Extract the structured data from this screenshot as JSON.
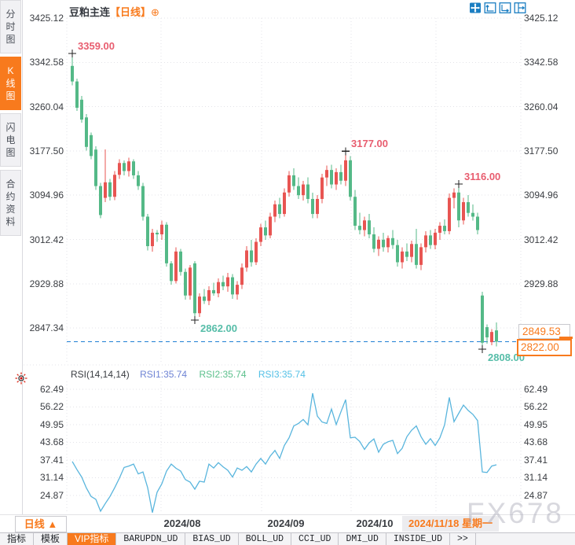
{
  "header": {
    "title": "豆粕主连",
    "period": "【日线】",
    "add_icon": "⊕"
  },
  "sidebar": {
    "tabs": [
      {
        "label": "分时图",
        "active": false
      },
      {
        "label": "K线图",
        "active": true
      },
      {
        "label": "闪电图",
        "active": false
      },
      {
        "label": "合约资料",
        "active": false
      }
    ]
  },
  "toolbar": {
    "icons": [
      "pan-icon",
      "axis-zoom-y-icon",
      "axis-zoom-x-icon",
      "reset-view-icon"
    ]
  },
  "colors": {
    "up": "#e85552",
    "down": "#54b987",
    "accent_orange": "#f87a1d",
    "annotation_high": "#e85d6f",
    "annotation_low": "#56bda8",
    "dashed_line": "#1f7fd4",
    "rsi_line": "#59b5dd",
    "grid": "#e3e3e8",
    "toolbar_blue": "#1b7ec2",
    "axis_text": "#3a3d42",
    "watermark": "#a9a9b8"
  },
  "chart_data": {
    "type": "candlestick",
    "title": "豆粕主连 日线",
    "main_panel": {
      "price_axis": [
        "3425.12",
        "3342.58",
        "3260.04",
        "3177.50",
        "3094.96",
        "3012.42",
        "2929.88",
        "2847.34"
      ],
      "price_axis_values": [
        3425.12,
        3342.58,
        3260.04,
        3177.5,
        3094.96,
        3012.42,
        2929.88,
        2847.34
      ],
      "candles": [
        [
          3336,
          3359,
          3300,
          3307
        ],
        [
          3307,
          3312,
          3252,
          3258
        ],
        [
          3273,
          3280,
          3230,
          3236
        ],
        [
          3240,
          3246,
          3178,
          3185
        ],
        [
          3207,
          3212,
          3162,
          3168
        ],
        [
          3180,
          3186,
          3105,
          3112
        ],
        [
          3112,
          3118,
          3052,
          3058
        ],
        [
          3090,
          3180,
          3082,
          3119
        ],
        [
          3119,
          3125,
          3085,
          3092
        ],
        [
          3092,
          3140,
          3086,
          3133
        ],
        [
          3133,
          3162,
          3125,
          3155
        ],
        [
          3155,
          3160,
          3132,
          3140
        ],
        [
          3140,
          3165,
          3130,
          3158
        ],
        [
          3158,
          3162,
          3125,
          3132
        ],
        [
          3132,
          3140,
          3105,
          3112
        ],
        [
          3112,
          3118,
          3048,
          3055
        ],
        [
          3055,
          3060,
          2992,
          3000
        ],
        [
          3000,
          3032,
          2990,
          3025
        ],
        [
          3025,
          3030,
          3008,
          3022
        ],
        [
          3022,
          3048,
          3012,
          3040
        ],
        [
          3040,
          3045,
          2962,
          2968
        ],
        [
          2968,
          2972,
          2928,
          2935
        ],
        [
          2935,
          2998,
          2930,
          2990
        ],
        [
          2990,
          2995,
          2945,
          2952
        ],
        [
          2952,
          2958,
          2900,
          2908
        ],
        [
          2908,
          2965,
          2900,
          2960
        ],
        [
          2968,
          2972,
          2862,
          2875
        ],
        [
          2875,
          2912,
          2868,
          2906
        ],
        [
          2906,
          2920,
          2892,
          2898
        ],
        [
          2898,
          2925,
          2890,
          2918
        ],
        [
          2918,
          2932,
          2908,
          2912
        ],
        [
          2912,
          2940,
          2905,
          2933
        ],
        [
          2933,
          2945,
          2918,
          2925
        ],
        [
          2925,
          2950,
          2915,
          2942
        ],
        [
          2942,
          2948,
          2902,
          2910
        ],
        [
          2910,
          2935,
          2900,
          2928
        ],
        [
          2928,
          2968,
          2920,
          2960
        ],
        [
          2960,
          3000,
          2952,
          2992
        ],
        [
          2992,
          3012,
          2962,
          2970
        ],
        [
          2970,
          3015,
          2965,
          3008
        ],
        [
          3008,
          3042,
          3000,
          3035
        ],
        [
          3035,
          3048,
          3012,
          3020
        ],
        [
          3020,
          3062,
          3015,
          3055
        ],
        [
          3055,
          3085,
          3045,
          3078
        ],
        [
          3078,
          3090,
          3052,
          3060
        ],
        [
          3060,
          3108,
          3055,
          3100
        ],
        [
          3100,
          3140,
          3092,
          3132
        ],
        [
          3132,
          3145,
          3105,
          3112
        ],
        [
          3112,
          3128,
          3088,
          3095
        ],
        [
          3095,
          3122,
          3085,
          3115
        ],
        [
          3115,
          3128,
          3080,
          3088
        ],
        [
          3088,
          3100,
          3052,
          3060
        ],
        [
          3060,
          3095,
          3052,
          3088
        ],
        [
          3088,
          3135,
          3080,
          3128
        ],
        [
          3128,
          3150,
          3112,
          3142
        ],
        [
          3142,
          3152,
          3108,
          3115
        ],
        [
          3115,
          3145,
          3105,
          3138
        ],
        [
          3138,
          3152,
          3115,
          3122
        ],
        [
          3122,
          3177,
          3112,
          3160
        ],
        [
          3160,
          3168,
          3085,
          3092
        ],
        [
          3092,
          3105,
          3030,
          3038
        ],
        [
          3038,
          3062,
          3022,
          3030
        ],
        [
          3030,
          3055,
          3018,
          3048
        ],
        [
          3048,
          3060,
          3015,
          3022
        ],
        [
          3022,
          3035,
          2988,
          2995
        ],
        [
          2995,
          3018,
          2982,
          3012
        ],
        [
          3012,
          3025,
          2990,
          2998
        ],
        [
          2998,
          3020,
          2988,
          3015
        ],
        [
          3015,
          3030,
          2995,
          3002
        ],
        [
          3002,
          3012,
          2962,
          2970
        ],
        [
          2970,
          2998,
          2958,
          2990
        ],
        [
          2990,
          3005,
          2972,
          2980
        ],
        [
          2980,
          3010,
          2970,
          3004
        ],
        [
          3004,
          3032,
          2958,
          2965
        ],
        [
          2965,
          3005,
          2955,
          2998
        ],
        [
          2998,
          3028,
          2988,
          3020
        ],
        [
          3020,
          3030,
          2995,
          3002
        ],
        [
          3002,
          3032,
          2994,
          3025
        ],
        [
          3025,
          3045,
          3012,
          3038
        ],
        [
          3038,
          3050,
          3022,
          3028
        ],
        [
          3028,
          3098,
          3022,
          3090
        ],
        [
          3090,
          3108,
          3070,
          3100
        ],
        [
          3100,
          3116,
          3035,
          3048
        ],
        [
          3048,
          3090,
          3040,
          3082
        ],
        [
          3082,
          3095,
          3055,
          3062
        ],
        [
          3062,
          3078,
          3048,
          3055
        ],
        [
          3055,
          3062,
          3022,
          3030
        ],
        [
          2908,
          2915,
          2808,
          2820
        ],
        [
          2849,
          2854,
          2818,
          2830
        ],
        [
          2821,
          2845,
          2815,
          2840
        ],
        [
          2843,
          2858,
          2813,
          2822
        ]
      ],
      "annotations": [
        {
          "label": "3359.00",
          "price": 3359,
          "candle": 0,
          "kind": "high"
        },
        {
          "label": "3177.00",
          "price": 3177,
          "candle": 58,
          "kind": "high"
        },
        {
          "label": "3116.00",
          "price": 3116,
          "candle": 82,
          "kind": "high"
        },
        {
          "label": "2862.00",
          "price": 2862,
          "candle": 26,
          "kind": "low"
        },
        {
          "label": "2808.00",
          "price": 2808,
          "candle": 87,
          "kind": "low"
        }
      ],
      "ref_price": "2849.53",
      "last_price": "2822.00",
      "dashed_line_price": 2822.0,
      "price_range": [
        2808,
        3425.12
      ]
    },
    "rsi_panel": {
      "title": "RSI(14,14,14)",
      "series": [
        {
          "name": "RSI1",
          "label": "RSI1:35.74",
          "value": 35.74
        },
        {
          "name": "RSI2",
          "label": "RSI2:35.74",
          "value": 35.74
        },
        {
          "name": "RSI3",
          "label": "RSI3:35.74",
          "value": 35.74
        }
      ],
      "axis": [
        "62.49",
        "56.22",
        "49.95",
        "43.68",
        "37.41",
        "31.14",
        "24.87"
      ],
      "axis_values": [
        62.49,
        56.22,
        49.95,
        43.68,
        37.41,
        31.14,
        24.87
      ],
      "values": [
        36.9,
        34.0,
        31.4,
        27.5,
        24.5,
        23.5,
        19.3,
        22.0,
        24.5,
        27.6,
        31.0,
        34.8,
        35.3,
        36.0,
        32.5,
        33.2,
        27.6,
        18.8,
        26.0,
        29.0,
        33.5,
        36.0,
        34.5,
        33.5,
        30.5,
        29.6,
        27.1,
        29.9,
        29.6,
        36.0,
        34.6,
        36.5,
        35.0,
        33.8,
        31.4,
        34.6,
        33.8,
        35.1,
        33.2,
        36.0,
        38.0,
        36.0,
        38.8,
        40.8,
        38.0,
        42.6,
        45.3,
        49.5,
        50.4,
        51.8,
        49.9,
        61.1,
        53.0,
        50.9,
        50.4,
        55.5,
        50.0,
        54.5,
        58.8,
        45.3,
        45.5,
        44.0,
        41.2,
        43.5,
        44.9,
        40.2,
        43.0,
        43.9,
        44.4,
        39.7,
        41.6,
        45.7,
        48.0,
        49.5,
        45.7,
        43.0,
        45.0,
        42.6,
        45.3,
        49.9,
        59.6,
        51.0,
        54.0,
        56.9,
        55.0,
        53.6,
        51.4,
        33.2,
        33.0,
        35.3,
        35.74
      ]
    },
    "time_axis": {
      "months": [
        {
          "label": "2024/08",
          "x": 232
        },
        {
          "label": "2024/09",
          "x": 364
        },
        {
          "label": "2024/10",
          "x": 477
        }
      ],
      "current": "2024/11/18 星期一"
    },
    "layout_hints": {
      "grid": "dotted",
      "vertical_grid_x": [
        205,
        333,
        447,
        555
      ]
    }
  },
  "bottom": {
    "period_label": "日线",
    "period_arrow": "▲",
    "tabs": [
      {
        "label": "指标",
        "active": false,
        "mono": false
      },
      {
        "label": "模板",
        "active": false,
        "mono": false
      },
      {
        "label": "VIP指标",
        "active": true,
        "mono": false
      },
      {
        "label": "BARUPDN_UD",
        "active": false,
        "mono": true
      },
      {
        "label": "BIAS_UD",
        "active": false,
        "mono": true
      },
      {
        "label": "BOLL_UD",
        "active": false,
        "mono": true
      },
      {
        "label": "CCI_UD",
        "active": false,
        "mono": true
      },
      {
        "label": "DMI_UD",
        "active": false,
        "mono": true
      },
      {
        "label": "INSIDE_UD",
        "active": false,
        "mono": true
      },
      {
        "label": ">>",
        "active": false,
        "mono": true
      }
    ]
  },
  "watermark": {
    "text": "FX678"
  }
}
